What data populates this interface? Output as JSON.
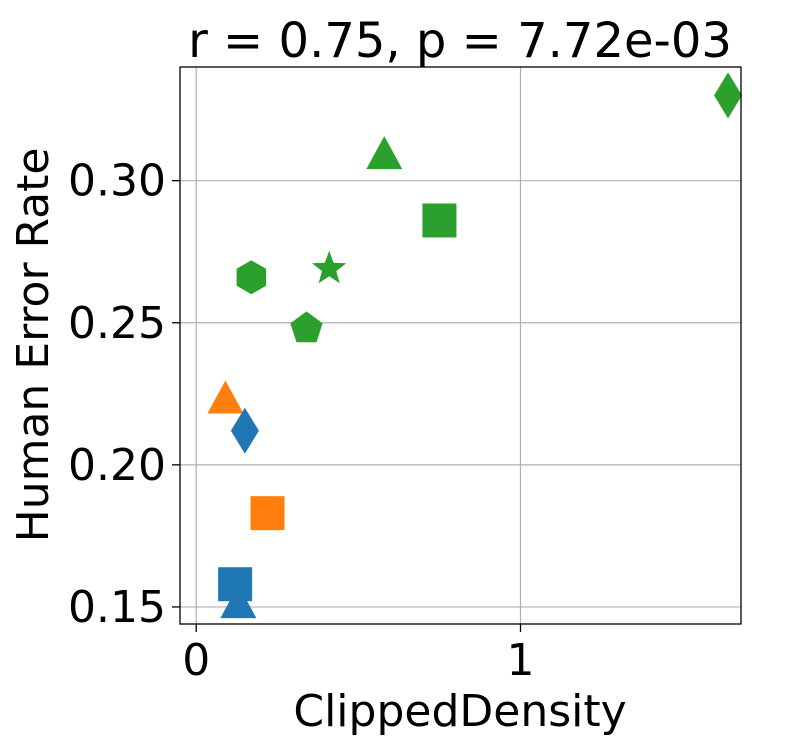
{
  "chart_data": {
    "type": "scatter",
    "title": "r = 0.75, p = 7.72e-03",
    "xlabel": "ClippedDensity",
    "ylabel": "Human Error Rate",
    "xlim": [
      -0.05,
      1.68
    ],
    "ylim": [
      0.144,
      0.34
    ],
    "xticks": [
      0,
      1
    ],
    "xtick_labels": [
      "0",
      "1"
    ],
    "yticks": [
      0.15,
      0.2,
      0.25,
      0.3
    ],
    "ytick_labels": [
      "0.15",
      "0.20",
      "0.25",
      "0.30"
    ],
    "grid": true,
    "legend": "none",
    "colors": {
      "blue": "#1f77b4",
      "orange": "#ff7f0e",
      "green": "#2ca02c"
    },
    "points": [
      {
        "x": 1.64,
        "y": 0.33,
        "color": "green",
        "marker": "diamond"
      },
      {
        "x": 0.58,
        "y": 0.309,
        "color": "green",
        "marker": "triangle"
      },
      {
        "x": 0.75,
        "y": 0.286,
        "color": "green",
        "marker": "square"
      },
      {
        "x": 0.41,
        "y": 0.269,
        "color": "green",
        "marker": "star"
      },
      {
        "x": 0.17,
        "y": 0.266,
        "color": "green",
        "marker": "hexagon"
      },
      {
        "x": 0.34,
        "y": 0.248,
        "color": "green",
        "marker": "pentagon"
      },
      {
        "x": 0.09,
        "y": 0.223,
        "color": "orange",
        "marker": "triangle"
      },
      {
        "x": 0.15,
        "y": 0.212,
        "color": "blue",
        "marker": "diamond"
      },
      {
        "x": 0.22,
        "y": 0.183,
        "color": "orange",
        "marker": "square"
      },
      {
        "x": 0.12,
        "y": 0.158,
        "color": "blue",
        "marker": "square"
      },
      {
        "x": 0.13,
        "y": 0.151,
        "color": "blue",
        "marker": "triangle"
      }
    ]
  }
}
